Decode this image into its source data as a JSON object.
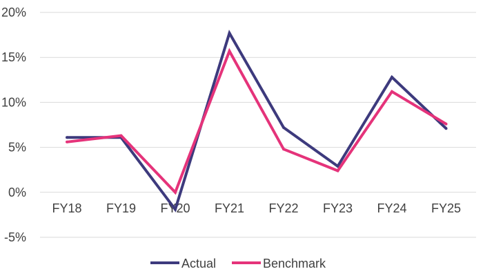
{
  "chart_data": {
    "type": "line",
    "title": "",
    "xlabel": "",
    "ylabel": "",
    "categories": [
      "FY18",
      "FY19",
      "FY20",
      "FY21",
      "FY22",
      "FY23",
      "FY24",
      "FY25"
    ],
    "series": [
      {
        "name": "Actual",
        "color": "#3d3a7d",
        "values": [
          6.1,
          6.1,
          -1.9,
          17.7,
          7.2,
          2.9,
          12.8,
          7.1
        ]
      },
      {
        "name": "Benchmark",
        "color": "#e5337a",
        "values": [
          5.6,
          6.3,
          0.0,
          15.7,
          4.8,
          2.4,
          11.2,
          7.6
        ]
      }
    ],
    "ylim": [
      -5,
      20
    ],
    "yticks": [
      20,
      15,
      10,
      5,
      0,
      -5
    ],
    "ytick_labels": [
      "20%",
      "15%",
      "10%",
      "5%",
      "0%",
      "-5%"
    ],
    "grid": true,
    "legend_position": "bottom"
  }
}
